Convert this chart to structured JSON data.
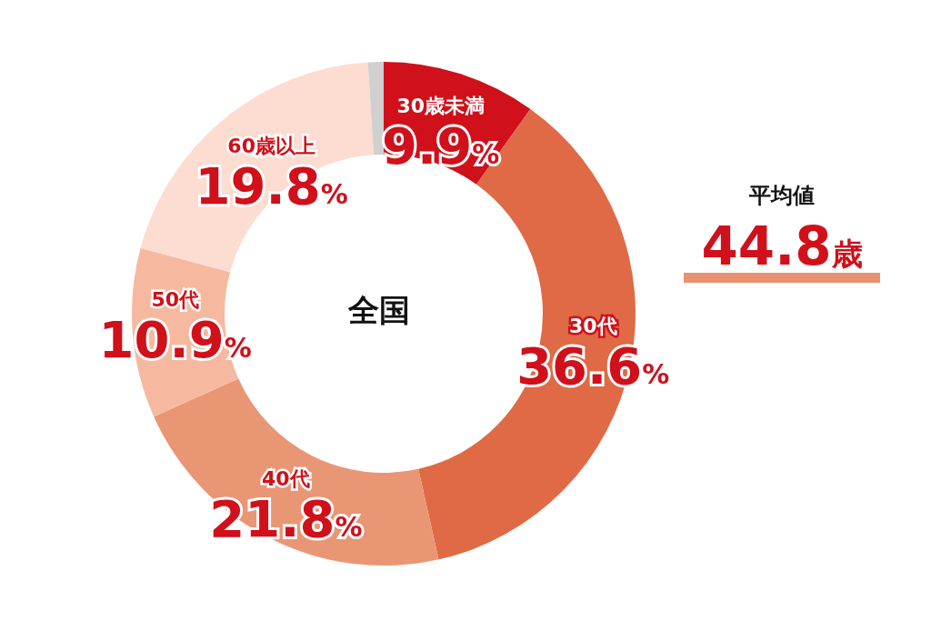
{
  "chart_data": {
    "type": "donut",
    "title": "全国",
    "categories": [
      "30歳未満",
      "30代",
      "40代",
      "50代",
      "60歳以上",
      null
    ],
    "values": [
      9.9,
      36.6,
      21.8,
      10.9,
      19.8,
      1.0
    ],
    "colors": [
      "#d0101a",
      "#df6a45",
      "#e99674",
      "#f6b9a0",
      "#fddcd2",
      "#d0d0d0"
    ],
    "value_labels": [
      "9.9%",
      "36.6%",
      "21.8%",
      "10.9%",
      "19.8%",
      null
    ],
    "annotations": [
      "平均値",
      "44.8歳"
    ],
    "legend": false
  }
}
